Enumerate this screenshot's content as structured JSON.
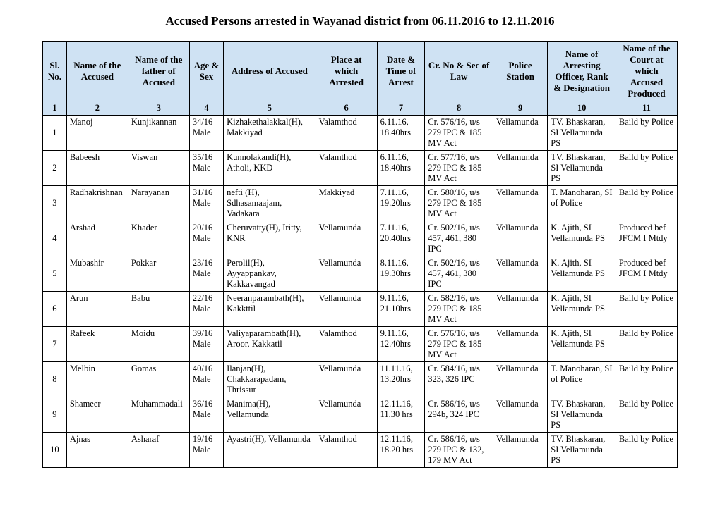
{
  "title": "Accused Persons arrested in   Wayanad  district from  06.11.2016 to 12.11.2016",
  "headers": {
    "c1": "Sl. No.",
    "c2": "Name of the Accused",
    "c3": "Name of the father of Accused",
    "c4": "Age & Sex",
    "c5": "Address of Accused",
    "c6": "Place at which Arrested",
    "c7": "Date & Time of Arrest",
    "c8": "Cr. No & Sec of Law",
    "c9": "Police Station",
    "c10": "Name of Arresting Officer, Rank & Designation",
    "c11": "Name of the Court at which Accused Produced"
  },
  "numrow": {
    "c1": "1",
    "c2": "2",
    "c3": "3",
    "c4": "4",
    "c5": "5",
    "c6": "6",
    "c7": "7",
    "c8": "8",
    "c9": "9",
    "c10": "10",
    "c11": "11"
  },
  "rows": [
    {
      "sl": "1",
      "accused": "Manoj",
      "father": "Kunjikannan",
      "age": "34/16 Male",
      "addr": "Kizhakethalakkal(H), Makkiyad",
      "place": "Valamthod",
      "date": "6.11.16, 18.40hrs",
      "cr": "Cr. 576/16, u/s 279 IPC & 185 MV Act",
      "ps": "Vellamunda",
      "off": "TV. Bhaskaran, SI Vellamunda PS",
      "court": "Baild by Police"
    },
    {
      "sl": "2",
      "accused": "Babeesh",
      "father": "Viswan",
      "age": "35/16 Male",
      "addr": "Kunnolakandi(H), Atholi, KKD",
      "place": "Valamthod",
      "date": "6.11.16, 18.40hrs",
      "cr": "Cr. 577/16, u/s 279 IPC & 185 MV Act",
      "ps": "Vellamunda",
      "off": "TV. Bhaskaran, SI Vellamunda PS",
      "court": "Baild by Police"
    },
    {
      "sl": "3",
      "accused": "Radhakrishnan",
      "father": "Narayanan",
      "age": "31/16 Male",
      "addr": "nefti (H), Sdhasamaajam, Vadakara",
      "place": "Makkiyad",
      "date": "7.11.16, 19.20hrs",
      "cr": "Cr. 580/16, u/s 279 IPC & 185 MV Act",
      "ps": "Vellamunda",
      "off": "T. Manoharan, SI of Police",
      "court": "Baild by Police"
    },
    {
      "sl": "4",
      "accused": "Arshad",
      "father": "Khader",
      "age": "20/16 Male",
      "addr": "Cheruvatty(H), Iritty, KNR",
      "place": "Vellamunda",
      "date": "7.11.16, 20.40hrs",
      "cr": "Cr. 502/16, u/s 457, 461, 380 IPC",
      "ps": "Vellamunda",
      "off": "K. Ajith, SI Vellamunda PS",
      "court": "Produced bef JFCM I Mtdy"
    },
    {
      "sl": "5",
      "accused": "Mubashir",
      "father": "Pokkar",
      "age": "23/16 Male",
      "addr": "Perolil(H), Ayyappankav, Kakkavangad",
      "place": "Vellamunda",
      "date": "8.11.16, 19.30hrs",
      "cr": "Cr. 502/16, u/s 457, 461, 380 IPC",
      "ps": "Vellamunda",
      "off": "K. Ajith, SI Vellamunda PS",
      "court": "Produced bef JFCM I Mtdy"
    },
    {
      "sl": "6",
      "accused": "Arun",
      "father": "Babu",
      "age": "22/16 Male",
      "addr": "Neeranparambath(H), Kakkttil",
      "place": "Vellamunda",
      "date": "9.11.16, 21.10hrs",
      "cr": "Cr. 582/16, u/s 279 IPC & 185 MV Act",
      "ps": "Vellamunda",
      "off": "K. Ajith, SI Vellamunda PS",
      "court": "Baild by Police"
    },
    {
      "sl": "7",
      "accused": "Rafeek",
      "father": "Moidu",
      "age": "39/16 Male",
      "addr": "Valiyaparambath(H), Aroor, Kakkatil",
      "place": "Valamthod",
      "date": "9.11.16, 12.40hrs",
      "cr": "Cr. 576/16, u/s 279 IPC & 185 MV Act",
      "ps": "Vellamunda",
      "off": "K. Ajith, SI Vellamunda PS",
      "court": "Baild by Police"
    },
    {
      "sl": "8",
      "accused": "Melbin",
      "father": "Gomas",
      "age": "40/16 Male",
      "addr": "Ilanjan(H), Chakkarapadam, Thrissur",
      "place": "Vellamunda",
      "date": "11.11.16, 13.20hrs",
      "cr": "Cr. 584/16, u/s 323, 326 IPC",
      "ps": "Vellamunda",
      "off": "T. Manoharan, SI of Police",
      "court": "Baild by Police"
    },
    {
      "sl": "9",
      "accused": "Shameer",
      "father": "Muhammadali",
      "age": "36/16 Male",
      "addr": "Manima(H), Vellamunda",
      "place": "Vellamunda",
      "date": "12.11.16, 11.30 hrs",
      "cr": "Cr. 586/16, u/s 294b, 324 IPC",
      "ps": "Vellamunda",
      "off": "TV. Bhaskaran, SI Vellamunda PS",
      "court": "Baild by Police"
    },
    {
      "sl": "10",
      "accused": "Ajnas",
      "father": "Asharaf",
      "age": "19/16 Male",
      "addr": "Ayastri(H), Vellamunda",
      "place": "Valamthod",
      "date": "12.11.16, 18.20 hrs",
      "cr": "Cr. 586/16, u/s 279 IPC & 132, 179 MV Act",
      "ps": "Vellamunda",
      "off": "TV. Bhaskaran, SI Vellamunda PS",
      "court": "Baild by Police"
    }
  ]
}
